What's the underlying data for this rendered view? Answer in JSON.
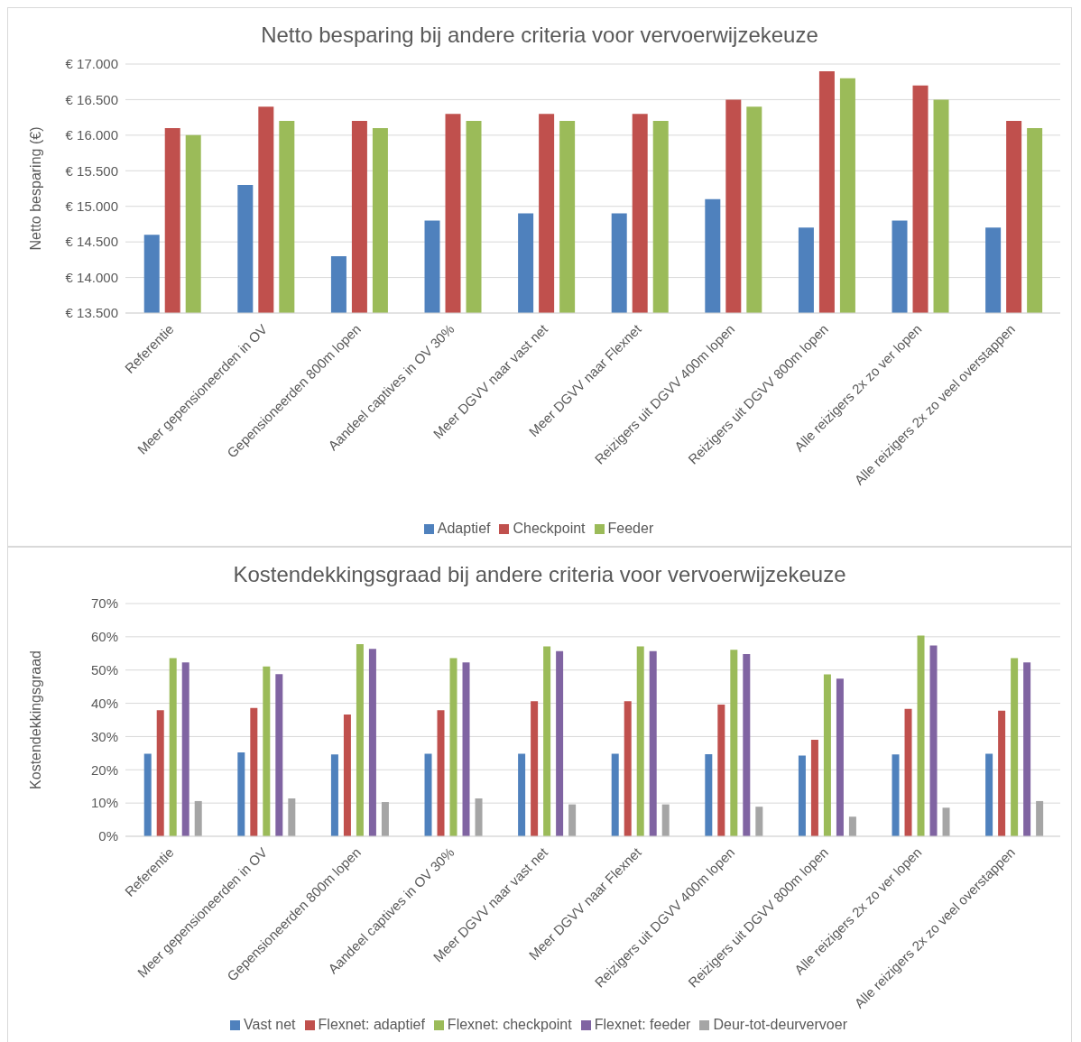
{
  "chart_data": [
    {
      "type": "bar",
      "title": "Netto besparing bij andere criteria voor vervoerwijzekeuze",
      "ylabel": "Netto besparing (€)",
      "categories": [
        "Referentie",
        "Meer gepensioneerden in OV",
        "Gepensioneerden 800m lopen",
        "Aandeel captives in OV 30%",
        "Meer DGVV naar vast net",
        "Meer DGVV naar Flexnet",
        "Reizigers uit DGVV 400m lopen",
        "Reizigers uit DGVV 800m lopen",
        "Alle reizigers 2x zo ver lopen",
        "Alle reizigers 2x zo veel overstappen"
      ],
      "series": [
        {
          "name": "Adaptief",
          "color": "#4f81bd",
          "values": [
            14600,
            15300,
            14300,
            14800,
            14900,
            14900,
            15100,
            14700,
            14800,
            14700
          ]
        },
        {
          "name": "Checkpoint",
          "color": "#c0504d",
          "values": [
            16100,
            16400,
            16200,
            16300,
            16300,
            16300,
            16500,
            16900,
            16700,
            16200
          ]
        },
        {
          "name": "Feeder",
          "color": "#9bbb59",
          "values": [
            16000,
            16200,
            16100,
            16200,
            16200,
            16200,
            16400,
            16800,
            16500,
            16100
          ]
        }
      ],
      "ylim": [
        13500,
        17000
      ],
      "yticks": [
        {
          "value": 13500,
          "label": "€ 13.500"
        },
        {
          "value": 14000,
          "label": "€ 14.000"
        },
        {
          "value": 14500,
          "label": "€ 14.500"
        },
        {
          "value": 15000,
          "label": "€ 15.000"
        },
        {
          "value": 15500,
          "label": "€ 15.500"
        },
        {
          "value": 16000,
          "label": "€ 16.000"
        },
        {
          "value": 16500,
          "label": "€ 16.500"
        },
        {
          "value": 17000,
          "label": "€ 17.000"
        }
      ],
      "grid": "y",
      "legend": "bottom"
    },
    {
      "type": "bar",
      "title": "Kostendekkingsgraad bij andere criteria voor vervoerwijzekeuze",
      "ylabel": "Kostendekkingsgraad",
      "categories": [
        "Referentie",
        "Meer gepensioneerden in OV",
        "Gepensioneerden 800m lopen",
        "Aandeel captives in OV 30%",
        "Meer DGVV naar vast net",
        "Meer DGVV naar Flexnet",
        "Reizigers uit DGVV 400m lopen",
        "Reizigers uit DGVV 800m lopen",
        "Alle reizigers 2x zo ver lopen",
        "Alle reizigers 2x zo veel overstappen"
      ],
      "series": [
        {
          "name": "Vast net",
          "color": "#4f81bd",
          "values": [
            24.8,
            25.2,
            24.6,
            24.8,
            24.8,
            24.8,
            24.7,
            24.3,
            24.6,
            24.8
          ]
        },
        {
          "name": "Flexnet: adaptief",
          "color": "#c0504d",
          "values": [
            37.9,
            38.6,
            36.6,
            37.9,
            40.6,
            40.6,
            39.6,
            29,
            38.3,
            37.8
          ]
        },
        {
          "name": "Flexnet: checkpoint",
          "color": "#9bbb59",
          "values": [
            53.6,
            51.1,
            57.8,
            53.6,
            57.1,
            57.1,
            56.1,
            48.7,
            60.4,
            53.6
          ]
        },
        {
          "name": "Flexnet: feeder",
          "color": "#8064a2",
          "values": [
            52.3,
            48.8,
            56.4,
            52.3,
            55.7,
            55.7,
            54.8,
            47.4,
            57.4,
            52.3
          ]
        },
        {
          "name": "Deur-tot-deurvervoer",
          "color": "#a5a5a5",
          "values": [
            10.6,
            11.4,
            10.3,
            11.4,
            9.6,
            9.6,
            8.9,
            5.9,
            8.6,
            10.6
          ]
        }
      ],
      "ylim": [
        0,
        70
      ],
      "yticks": [
        {
          "value": 0,
          "label": "0%"
        },
        {
          "value": 10,
          "label": "10%"
        },
        {
          "value": 20,
          "label": "20%"
        },
        {
          "value": 30,
          "label": "30%"
        },
        {
          "value": 40,
          "label": "40%"
        },
        {
          "value": 50,
          "label": "50%"
        },
        {
          "value": 60,
          "label": "60%"
        },
        {
          "value": 70,
          "label": "70%"
        }
      ],
      "grid": "y",
      "legend": "bottom"
    }
  ]
}
